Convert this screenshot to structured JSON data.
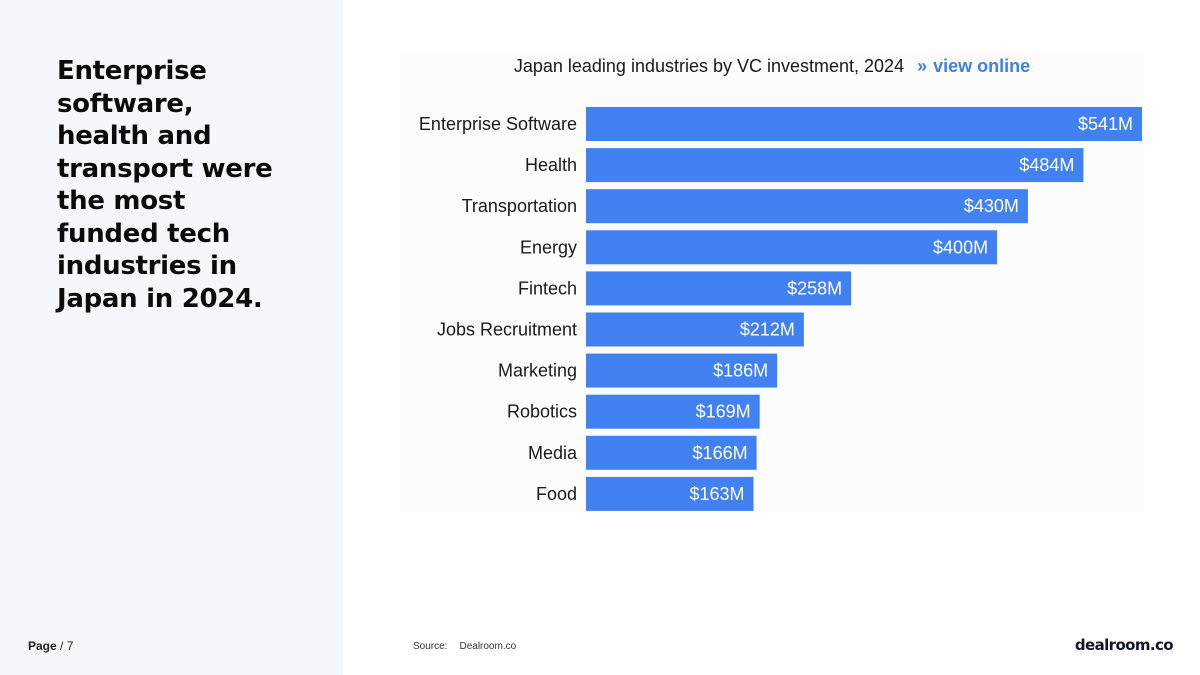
{
  "headline": "Enterprise software, health and transport were the most funded tech industries in Japan in 2024.",
  "page": {
    "label": "Page",
    "separator": " / ",
    "number": "7"
  },
  "chart_header": {
    "title": "Japan leading industries by VC investment, 2024",
    "link_chevron": "»",
    "link_label": "view online"
  },
  "source": {
    "label": "Source:",
    "value": "Dealroom.co"
  },
  "logo_text": "dealroom.co",
  "colors": {
    "bar": "#4181f2",
    "link": "#3f7fe6",
    "panel": "#f5f7fd"
  },
  "chart_data": {
    "type": "bar",
    "orientation": "horizontal",
    "title": "Japan leading industries by VC investment, 2024",
    "categories": [
      "Enterprise Software",
      "Health",
      "Transportation",
      "Energy",
      "Fintech",
      "Jobs Recruitment",
      "Marketing",
      "Robotics",
      "Media",
      "Food"
    ],
    "values": [
      541,
      484,
      430,
      400,
      258,
      212,
      186,
      169,
      166,
      163
    ],
    "labels": [
      "$541M",
      "$484M",
      "$430M",
      "$400M",
      "$258M",
      "$212M",
      "$186M",
      "$169M",
      "$166M",
      "$163M"
    ],
    "unit": "USD millions",
    "xlim": [
      0,
      541
    ],
    "xlabel": "",
    "ylabel": ""
  }
}
